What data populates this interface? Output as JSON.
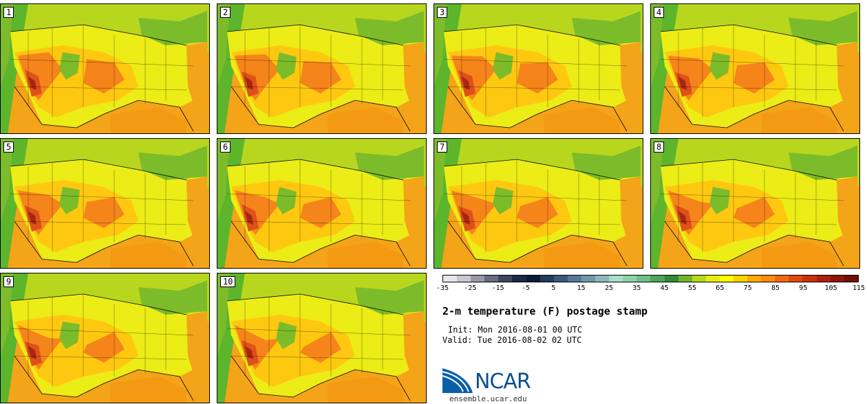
{
  "panels": [
    {
      "label": "1"
    },
    {
      "label": "2"
    },
    {
      "label": "3"
    },
    {
      "label": "4"
    },
    {
      "label": "5"
    },
    {
      "label": "6"
    },
    {
      "label": "7"
    },
    {
      "label": "8"
    },
    {
      "label": "9"
    },
    {
      "label": "10"
    }
  ],
  "colorbar": {
    "colors": [
      "#e6e6ee",
      "#c8c8d2",
      "#9898a8",
      "#6a6a80",
      "#3c4560",
      "#1b2745",
      "#0b1a36",
      "#243c5c",
      "#3a5878",
      "#567896",
      "#6f98aa",
      "#8cb9b8",
      "#a8dccc",
      "#8fd2a8",
      "#6fc08a",
      "#4da45c",
      "#2f8a3a",
      "#6fb52c",
      "#b5d619",
      "#e6ec12",
      "#ffff00",
      "#ffd400",
      "#ffa800",
      "#ff8a10",
      "#f06a10",
      "#e04a10",
      "#c8320e",
      "#aa200c",
      "#8c160a",
      "#6e1008"
    ],
    "tick_labels": [
      "-35",
      "-25",
      "-15",
      "-5",
      "5",
      "15",
      "25",
      "35",
      "45",
      "55",
      "65",
      "75",
      "85",
      "95",
      "105",
      "115"
    ]
  },
  "title": "2-m temperature (F) postage stamp",
  "init": "Init: Mon 2016-08-01 00 UTC",
  "valid": "Valid: Tue 2016-08-02 02 UTC",
  "logo_text": "NCAR",
  "site": "ensemble.ucar.edu",
  "map_colors": {
    "ocean_west": "#5db52c",
    "ocean_west_light": "#9ccf1e",
    "ocean_east": "#f4a418",
    "north": "#b9d61e",
    "mid": "#ecec16",
    "warm": "#ffc810",
    "hot": "#f5841a",
    "hotter": "#e0501a",
    "hottest": "#a8260e",
    "cool": "#7cbc2a",
    "gulf": "#f39a12"
  }
}
